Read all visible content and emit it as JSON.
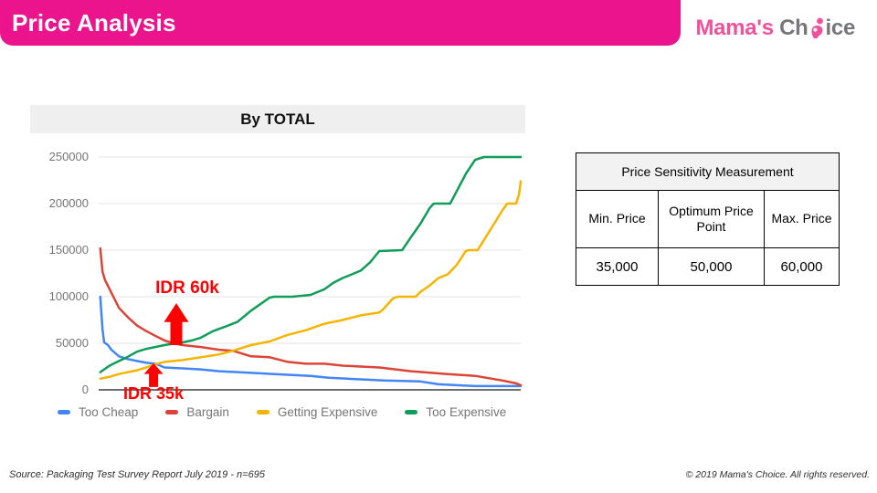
{
  "header": {
    "title": "Price Analysis",
    "bg_color": "#EB148D"
  },
  "logo": {
    "text_pink": "Mama's ",
    "text_gray_1": "Ch",
    "text_gray_2": "ice",
    "pink": "#F0519B",
    "gray": "#76777A"
  },
  "chart_data": {
    "type": "line",
    "title": "By TOTAL",
    "xlabel": "",
    "ylabel": "",
    "x_note": "price axis shown without tick labels; x given as percent of plot width",
    "ylim": [
      0,
      250000
    ],
    "y_ticks": [
      250000,
      200000,
      150000,
      100000,
      50000,
      0
    ],
    "grid": true,
    "legend_position": "bottom",
    "series": [
      {
        "name": "Too Cheap",
        "color": "#4285F4",
        "points": [
          [
            0.4,
            100000
          ],
          [
            0.6,
            85000
          ],
          [
            0.9,
            65000
          ],
          [
            1.3,
            51000
          ],
          [
            2.2,
            48000
          ],
          [
            3,
            43000
          ],
          [
            4.8,
            36000
          ],
          [
            6.9,
            33000
          ],
          [
            9.1,
            31000
          ],
          [
            11.3,
            29000
          ],
          [
            13.4,
            28000
          ],
          [
            15.6,
            24000
          ],
          [
            19.9,
            23000
          ],
          [
            24.2,
            22000
          ],
          [
            28.6,
            20000
          ],
          [
            32.9,
            19000
          ],
          [
            37.2,
            18000
          ],
          [
            41.6,
            17000
          ],
          [
            45.9,
            16000
          ],
          [
            50.2,
            15000
          ],
          [
            54.5,
            13000
          ],
          [
            58.9,
            12000
          ],
          [
            63.2,
            11000
          ],
          [
            67.5,
            10000
          ],
          [
            71.9,
            9500
          ],
          [
            76.2,
            9000
          ],
          [
            80.5,
            6000
          ],
          [
            84.8,
            5000
          ],
          [
            89.2,
            4000
          ],
          [
            94.6,
            4000
          ],
          [
            100,
            4000
          ]
        ]
      },
      {
        "name": "Bargain",
        "color": "#DB4437",
        "points": [
          [
            0.4,
            152000
          ],
          [
            0.9,
            127000
          ],
          [
            1.5,
            118000
          ],
          [
            2.6,
            108000
          ],
          [
            3.7,
            98000
          ],
          [
            4.8,
            88000
          ],
          [
            6.9,
            78000
          ],
          [
            9.1,
            69000
          ],
          [
            11.3,
            63000
          ],
          [
            13.4,
            58000
          ],
          [
            15.6,
            53000
          ],
          [
            17.7,
            50000
          ],
          [
            19.9,
            48000
          ],
          [
            24.2,
            46000
          ],
          [
            28.6,
            43000
          ],
          [
            31.8,
            42000
          ],
          [
            36.1,
            36000
          ],
          [
            40.5,
            35000
          ],
          [
            44.8,
            30000
          ],
          [
            49.1,
            28000
          ],
          [
            53.5,
            28000
          ],
          [
            57.8,
            26000
          ],
          [
            62.1,
            25000
          ],
          [
            66.5,
            24000
          ],
          [
            74,
            20000
          ],
          [
            82.7,
            17000
          ],
          [
            89.2,
            15000
          ],
          [
            95.7,
            10000
          ],
          [
            98.9,
            7000
          ],
          [
            100,
            5000
          ]
        ]
      },
      {
        "name": "Getting Expensive",
        "color": "#F4B400",
        "points": [
          [
            0.4,
            12000
          ],
          [
            2.6,
            14000
          ],
          [
            4.8,
            17000
          ],
          [
            6.9,
            19000
          ],
          [
            9.1,
            21000
          ],
          [
            11.3,
            24000
          ],
          [
            13,
            27000
          ],
          [
            15.6,
            30000
          ],
          [
            19.9,
            32000
          ],
          [
            24.2,
            35000
          ],
          [
            28.6,
            38000
          ],
          [
            31.8,
            42000
          ],
          [
            36.1,
            48000
          ],
          [
            38.3,
            50000
          ],
          [
            40.5,
            52000
          ],
          [
            44.8,
            59000
          ],
          [
            49.1,
            64000
          ],
          [
            53.5,
            71000
          ],
          [
            57.8,
            75000
          ],
          [
            62.1,
            80000
          ],
          [
            66.5,
            83000
          ],
          [
            67.5,
            87000
          ],
          [
            69.7,
            98000
          ],
          [
            70.8,
            100000
          ],
          [
            75.1,
            100000
          ],
          [
            76.2,
            105000
          ],
          [
            78.4,
            112000
          ],
          [
            80.5,
            120000
          ],
          [
            82.7,
            124000
          ],
          [
            84.8,
            134000
          ],
          [
            87,
            149000
          ],
          [
            87.7,
            150000
          ],
          [
            89.8,
            150000
          ],
          [
            91.3,
            161000
          ],
          [
            93.5,
            177000
          ],
          [
            95.7,
            193000
          ],
          [
            96.8,
            200000
          ],
          [
            98.9,
            200000
          ],
          [
            99.6,
            210000
          ],
          [
            100,
            224000
          ]
        ]
      },
      {
        "name": "Too Expensive",
        "color": "#0F9D58",
        "points": [
          [
            0.4,
            19000
          ],
          [
            2.6,
            26000
          ],
          [
            4.8,
            31000
          ],
          [
            6.3,
            34000
          ],
          [
            9.1,
            41000
          ],
          [
            11.3,
            44000
          ],
          [
            13.4,
            46000
          ],
          [
            15.6,
            48000
          ],
          [
            18.4,
            50000
          ],
          [
            19.9,
            51000
          ],
          [
            22.1,
            53000
          ],
          [
            24.2,
            56000
          ],
          [
            27.1,
            63000
          ],
          [
            30.1,
            68000
          ],
          [
            32.9,
            73000
          ],
          [
            36.1,
            85000
          ],
          [
            40.5,
            99000
          ],
          [
            41.6,
            100000
          ],
          [
            45.9,
            100000
          ],
          [
            50.2,
            102000
          ],
          [
            53.5,
            108000
          ],
          [
            55.6,
            115000
          ],
          [
            57.8,
            120000
          ],
          [
            60,
            124000
          ],
          [
            62.1,
            128000
          ],
          [
            64.3,
            137000
          ],
          [
            66.5,
            149000
          ],
          [
            71.9,
            150000
          ],
          [
            74,
            164000
          ],
          [
            76.2,
            178000
          ],
          [
            78.4,
            195000
          ],
          [
            79.4,
            200000
          ],
          [
            83.3,
            200000
          ],
          [
            84.8,
            213000
          ],
          [
            87,
            232000
          ],
          [
            89.2,
            247000
          ],
          [
            91.3,
            250000
          ],
          [
            100,
            250000
          ]
        ]
      }
    ],
    "annotations": [
      {
        "label": "IDR 60k",
        "x_pct": 18.4,
        "arrow_tip_value": 93000,
        "arrow_base_value": 48000,
        "head_w": 27,
        "stem_w": 13,
        "color": "#FF0000"
      },
      {
        "label": "IDR 35k",
        "x_pct": 13.0,
        "arrow_tip_value": 28500,
        "arrow_base_value": 3000,
        "head_w": 21,
        "stem_w": 10,
        "color": "#FF0000"
      }
    ]
  },
  "psm_table": {
    "title": "Price Sensitivity Measurement",
    "columns": [
      "Min. Price",
      "Optimum Price Point",
      "Max. Price"
    ],
    "values": [
      "35,000",
      "50,000",
      "60,000"
    ]
  },
  "footer": {
    "source": "Source: Packaging Test  Survey Report July 2019 - n=695",
    "copyright": "© 2019 Mama's Choice.  All rights reserved."
  }
}
